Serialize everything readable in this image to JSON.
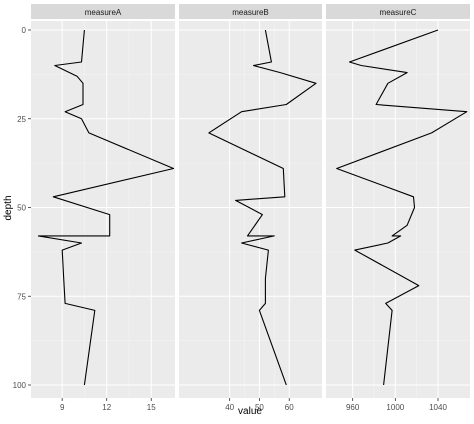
{
  "chart_data": {
    "type": "line",
    "title": "",
    "xlabel": "value",
    "ylabel": "depth",
    "y_reversed": true,
    "ylim": [
      0,
      100
    ],
    "y_ticks": [
      0,
      25,
      50,
      75,
      100
    ],
    "y_tick_labels": [
      "0",
      "25",
      "50",
      "75",
      "100"
    ],
    "colors": {
      "panel_bg": "#ebebeb",
      "strip_bg": "#d9d9d9",
      "grid_major": "#ffffff",
      "grid_minor": "#f5f5f5",
      "line": "#000000",
      "tick": "#333333"
    },
    "panels": [
      {
        "name": "measureA",
        "xlim": [
          6.9,
          16.6
        ],
        "x_ticks": [
          9,
          12,
          15
        ],
        "x_tick_labels": [
          "9",
          "12",
          "15"
        ],
        "points": [
          [
            10.5,
            0
          ],
          [
            10.3,
            9
          ],
          [
            8.5,
            10
          ],
          [
            10.0,
            13
          ],
          [
            10.4,
            15
          ],
          [
            10.4,
            21
          ],
          [
            9.2,
            23
          ],
          [
            10.3,
            25
          ],
          [
            10.8,
            29
          ],
          [
            16.5,
            39
          ],
          [
            8.4,
            47
          ],
          [
            12.2,
            52
          ],
          [
            12.2,
            58
          ],
          [
            7.4,
            58
          ],
          [
            10.3,
            60
          ],
          [
            9.0,
            62
          ],
          [
            9.1,
            70
          ],
          [
            9.2,
            77
          ],
          [
            11.2,
            79
          ],
          [
            10.5,
            100
          ]
        ]
      },
      {
        "name": "measureB",
        "xlim": [
          23,
          71
        ],
        "x_ticks": [
          40,
          50,
          60
        ],
        "x_tick_labels": [
          "40",
          "50",
          "60"
        ],
        "points": [
          [
            52,
            0
          ],
          [
            54,
            9
          ],
          [
            48,
            10
          ],
          [
            57,
            12
          ],
          [
            69,
            15
          ],
          [
            59,
            21
          ],
          [
            44,
            23
          ],
          [
            33,
            29
          ],
          [
            58,
            39
          ],
          [
            58.5,
            47
          ],
          [
            42,
            48
          ],
          [
            51,
            52
          ],
          [
            46,
            58
          ],
          [
            55,
            58
          ],
          [
            44,
            60
          ],
          [
            53,
            62
          ],
          [
            52,
            70
          ],
          [
            52,
            77
          ],
          [
            50,
            79
          ],
          [
            59,
            100
          ]
        ]
      },
      {
        "name": "measureC",
        "xlim": [
          935,
          1070
        ],
        "x_ticks": [
          960,
          1000,
          1040
        ],
        "x_tick_labels": [
          "960",
          "1000",
          "1040"
        ],
        "points": [
          [
            1040,
            0
          ],
          [
            957,
            9
          ],
          [
            968,
            10
          ],
          [
            1011,
            12
          ],
          [
            993,
            15
          ],
          [
            982,
            21
          ],
          [
            1067,
            23
          ],
          [
            1034,
            29
          ],
          [
            945,
            39
          ],
          [
            1017,
            47
          ],
          [
            1018,
            50
          ],
          [
            1011,
            55
          ],
          [
            997,
            58
          ],
          [
            1005,
            58
          ],
          [
            993,
            60
          ],
          [
            962,
            62
          ],
          [
            1022,
            72
          ],
          [
            991,
            77
          ],
          [
            997,
            79
          ],
          [
            989,
            100
          ]
        ]
      }
    ]
  }
}
